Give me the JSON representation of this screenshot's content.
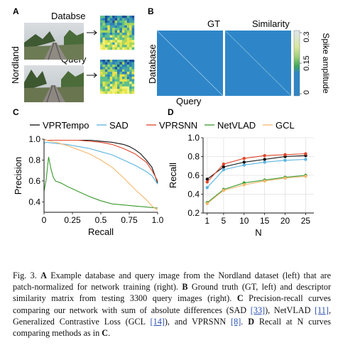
{
  "panel_a": {
    "letter": "A",
    "side_label": "Nordland",
    "database_label": "Databse",
    "query_label": "Query"
  },
  "panel_b": {
    "letter": "B",
    "gt_label": "GT",
    "similarity_label": "Similarity",
    "x_label": "Query",
    "y_label": "Database",
    "colorbar_label": "Spike amplitude",
    "colorbar_ticks": [
      "0.3",
      "0.15",
      "0"
    ]
  },
  "colors": {
    "vprtempo": "#111111",
    "sad": "#5bb4e0",
    "vprsnn": "#e0452a",
    "netvlad": "#3a9a2c",
    "gcl": "#f4b870",
    "matrix_bg": "#2e86c8"
  },
  "legend": [
    "VPRTempo",
    "SAD",
    "VPRSNN",
    "NetVLAD",
    "GCL"
  ],
  "chart_data": [
    {
      "type": "line",
      "panel": "C",
      "xlabel": "Recall",
      "ylabel": "Precision",
      "xlim": [
        0,
        1
      ],
      "ylim": [
        0.3,
        1.0
      ],
      "xticks": [
        "0",
        "0.25",
        "0.5",
        "0.75",
        "1.0"
      ],
      "yticks": [
        "0.4",
        "0.6",
        "0.8",
        "1.0"
      ],
      "grid": false,
      "series": [
        {
          "name": "VPRTempo",
          "x": [
            0.0,
            0.02,
            0.1,
            0.2,
            0.3,
            0.4,
            0.5,
            0.6,
            0.7,
            0.75,
            0.8,
            0.85,
            0.9,
            0.95,
            1.0
          ],
          "y": [
            1.0,
            0.99,
            0.99,
            0.99,
            0.99,
            0.99,
            0.98,
            0.97,
            0.95,
            0.93,
            0.9,
            0.86,
            0.8,
            0.73,
            0.58
          ]
        },
        {
          "name": "SAD",
          "x": [
            0.0,
            0.02,
            0.1,
            0.2,
            0.3,
            0.4,
            0.5,
            0.6,
            0.7,
            0.8,
            0.9,
            0.95,
            1.0
          ],
          "y": [
            0.96,
            0.97,
            0.96,
            0.95,
            0.93,
            0.91,
            0.88,
            0.85,
            0.8,
            0.75,
            0.69,
            0.65,
            0.57
          ]
        },
        {
          "name": "VPRSNN",
          "x": [
            0.0,
            0.02,
            0.1,
            0.2,
            0.3,
            0.4,
            0.5,
            0.6,
            0.7,
            0.8,
            0.9,
            0.95,
            1.0
          ],
          "y": [
            1.0,
            0.99,
            0.99,
            0.99,
            0.99,
            0.98,
            0.97,
            0.95,
            0.91,
            0.86,
            0.78,
            0.7,
            0.6
          ]
        },
        {
          "name": "NetVLAD",
          "x": [
            0.0,
            0.02,
            0.04,
            0.06,
            0.08,
            0.1,
            0.15,
            0.2,
            0.3,
            0.4,
            0.5,
            0.6,
            0.7,
            0.8,
            0.9,
            1.0
          ],
          "y": [
            0.5,
            0.62,
            0.83,
            0.72,
            0.64,
            0.6,
            0.58,
            0.55,
            0.5,
            0.45,
            0.41,
            0.38,
            0.37,
            0.36,
            0.35,
            0.34
          ]
        },
        {
          "name": "GCL",
          "x": [
            0.0,
            0.02,
            0.1,
            0.2,
            0.3,
            0.4,
            0.5,
            0.6,
            0.7,
            0.8,
            0.9,
            0.95,
            1.0
          ],
          "y": [
            1.0,
            0.99,
            0.97,
            0.94,
            0.9,
            0.86,
            0.8,
            0.73,
            0.63,
            0.52,
            0.42,
            0.36,
            0.32
          ]
        }
      ]
    },
    {
      "type": "line",
      "panel": "D",
      "xlabel": "N",
      "ylabel": "Recall",
      "xlim": [
        0,
        27
      ],
      "ylim": [
        0.2,
        1.0
      ],
      "xticks": [
        "1",
        "5",
        "10",
        "15",
        "20",
        "25"
      ],
      "yticks": [
        "0.2",
        "0.4",
        "0.6",
        "0.8",
        "1.0"
      ],
      "grid": true,
      "x": [
        1,
        5,
        10,
        15,
        20,
        25
      ],
      "series": [
        {
          "name": "VPRTempo",
          "values": [
            0.56,
            0.69,
            0.74,
            0.77,
            0.8,
            0.81
          ]
        },
        {
          "name": "SAD",
          "values": [
            0.47,
            0.66,
            0.71,
            0.74,
            0.76,
            0.77
          ]
        },
        {
          "name": "VPRSNN",
          "values": [
            0.53,
            0.72,
            0.78,
            0.81,
            0.82,
            0.83
          ]
        },
        {
          "name": "NetVLAD",
          "values": [
            0.31,
            0.45,
            0.52,
            0.55,
            0.58,
            0.6
          ]
        },
        {
          "name": "GCL",
          "values": [
            0.3,
            0.44,
            0.5,
            0.54,
            0.57,
            0.59
          ]
        }
      ]
    }
  ],
  "caption": {
    "fig": "Fig. 3.",
    "a_letter": "A",
    "a_text": " Example database and query image from the Nordland dataset (left) that are patch-normalized for network training (right). ",
    "b_letter": "B",
    "b_text": " Ground truth (GT, left) and descriptor similarity matrix from testing 3300 query images (right). ",
    "c_letter": "C",
    "c_text1": " Precision-recall curves comparing our network with sum of absolute differences (SAD ",
    "ref1": "[33]",
    "c_text2": "), NetVLAD ",
    "ref2": "[11]",
    "c_text3": ", Generalized Contrastive Loss (GCL ",
    "ref3": "[14]",
    "c_text4": "), and VPRSNN ",
    "ref4": "[8]",
    "c_text5": ". ",
    "d_letter": "D",
    "d_text": " Recall at N curves comparing methods as in ",
    "c_end": "C",
    "end": "."
  }
}
